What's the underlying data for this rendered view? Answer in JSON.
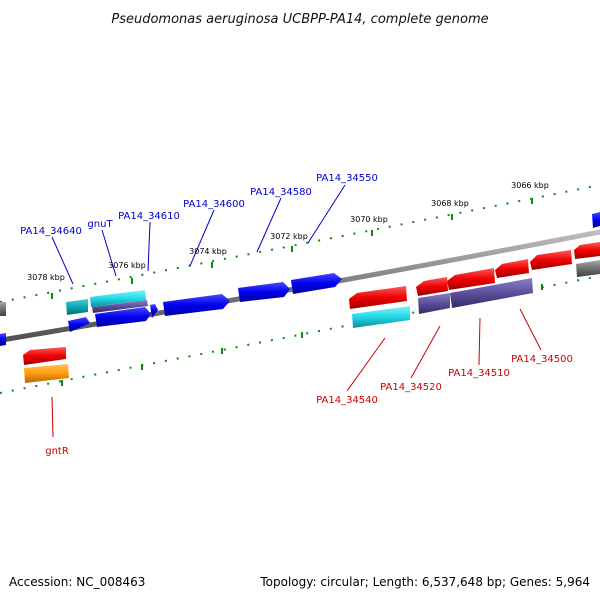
{
  "title": "Pseudomonas aeruginosa UCBPP-PA14, complete genome",
  "footer": {
    "accession": "Accession: NC_008463",
    "summary": "Topology: circular; Length: 6,537,648 bp; Genes: 5,964"
  },
  "scale": {
    "unit": "kbp",
    "tick_labels": [
      "3066 kbp",
      "3068 kbp",
      "3070 kbp",
      "3072 kbp",
      "3074 kbp",
      "3076 kbp",
      "3078 kbp"
    ]
  },
  "colors": {
    "forward_strand": "#0000ee",
    "reverse_strand": "#ee0000",
    "forward_label": "#0000cc",
    "reverse_label": "#cc0000",
    "backbone": "#808080",
    "tick": "#118811",
    "cyan": "#22d0dd",
    "purple": "#5a4f9a",
    "orange": "#ff9a10",
    "grey_gene": "#707070"
  },
  "labels": {
    "forward": [
      "PA14_34640",
      "gnuT",
      "PA14_34610",
      "PA14_34600",
      "PA14_34580",
      "PA14_34550"
    ],
    "reverse": [
      "gntR",
      "PA14_34540",
      "PA14_34520",
      "PA14_34510",
      "PA14_34500"
    ]
  }
}
